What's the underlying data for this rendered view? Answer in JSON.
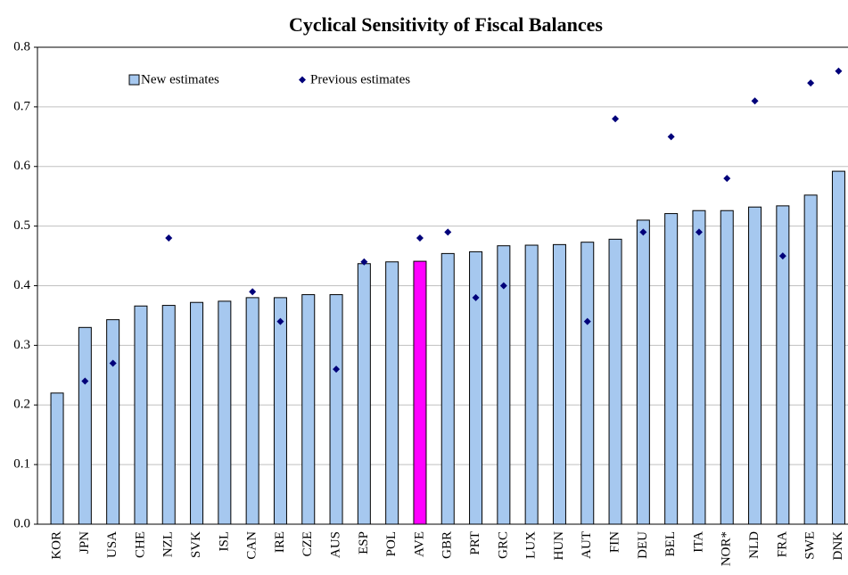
{
  "chart_data": {
    "type": "bar",
    "title": "Cyclical Sensitivity of Fiscal Balances",
    "categories": [
      "KOR",
      "JPN",
      "USA",
      "CHE",
      "NZL",
      "SVK",
      "ISL",
      "CAN",
      "IRE",
      "CZE",
      "AUS",
      "ESP",
      "POL",
      "AVE",
      "GBR",
      "PRT",
      "GRC",
      "LUX",
      "HUN",
      "AUT",
      "FIN",
      "DEU",
      "BEL",
      "ITA",
      "NOR*",
      "NLD",
      "FRA",
      "SWE",
      "DNK"
    ],
    "series": [
      {
        "name": "New estimates",
        "type": "bar",
        "color": "#a6c8ef",
        "colors": [
          "#a6c8ef",
          "#a6c8ef",
          "#a6c8ef",
          "#a6c8ef",
          "#a6c8ef",
          "#a6c8ef",
          "#a6c8ef",
          "#a6c8ef",
          "#a6c8ef",
          "#a6c8ef",
          "#a6c8ef",
          "#a6c8ef",
          "#a6c8ef",
          "#ff00ff",
          "#a6c8ef",
          "#a6c8ef",
          "#a6c8ef",
          "#a6c8ef",
          "#a6c8ef",
          "#a6c8ef",
          "#a6c8ef",
          "#a6c8ef",
          "#a6c8ef",
          "#a6c8ef",
          "#a6c8ef",
          "#a6c8ef",
          "#a6c8ef",
          "#a6c8ef",
          "#a6c8ef"
        ],
        "values": [
          0.22,
          0.33,
          0.343,
          0.366,
          0.367,
          0.372,
          0.374,
          0.38,
          0.38,
          0.385,
          0.385,
          0.437,
          0.44,
          0.441,
          0.454,
          0.457,
          0.467,
          0.468,
          0.469,
          0.473,
          0.478,
          0.51,
          0.521,
          0.526,
          0.526,
          0.532,
          0.534,
          0.552,
          0.592
        ]
      },
      {
        "name": "Previous estimates",
        "type": "scatter",
        "color": "#00007a",
        "values": [
          null,
          0.24,
          0.27,
          null,
          0.48,
          null,
          null,
          0.39,
          0.34,
          null,
          0.26,
          0.44,
          null,
          0.48,
          0.49,
          0.38,
          0.4,
          null,
          null,
          0.34,
          0.68,
          0.49,
          0.65,
          0.49,
          0.58,
          0.71,
          0.45,
          0.74,
          0.76
        ]
      }
    ],
    "ylim": [
      0,
      0.8
    ],
    "yticks": [
      {
        "value": 0,
        "label": "0.0"
      },
      0.1,
      0.2,
      0.3,
      0.4,
      0.5,
      0.6,
      0.7,
      0.8
    ],
    "grid": true
  }
}
